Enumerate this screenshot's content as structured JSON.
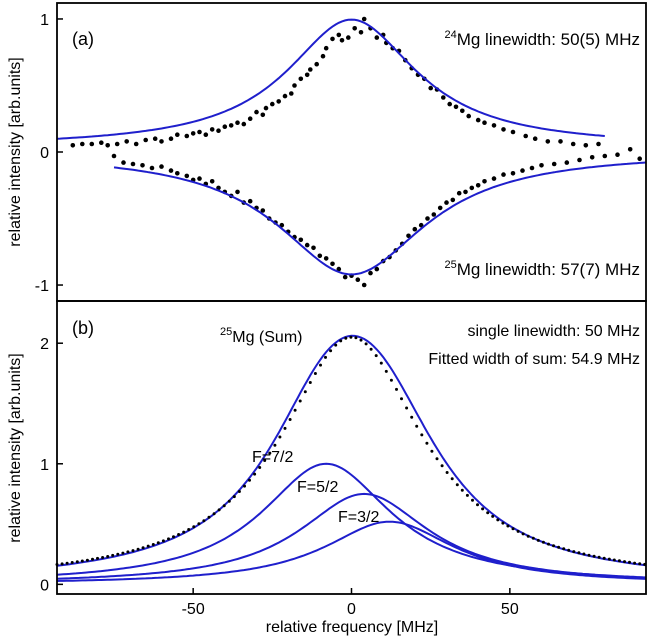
{
  "chart_data": [
    {
      "type": "scatter",
      "panel_label": "(a)",
      "ylabel": "relative intensity [arb.units]",
      "xlim": [
        -93,
        93
      ],
      "ylim": [
        -1.12,
        1.12
      ],
      "yticks": [
        {
          "value": -1,
          "label": "-1"
        },
        {
          "value": 0,
          "label": "0"
        },
        {
          "value": 1,
          "label": "1"
        }
      ],
      "annotations": [
        {
          "sup": "24",
          "text": "Mg linewidth: 50(5) MHz"
        },
        {
          "sup": "25",
          "text": "Mg linewidth: 57(7) MHz"
        }
      ],
      "series": [
        {
          "fit": {
            "center": 0,
            "fwhm": 50,
            "amplitude": 0.96,
            "offset": 0.035,
            "range": [
              -93,
              80
            ]
          },
          "points": [
            [
              -88,
              0.05
            ],
            [
              -85,
              0.06
            ],
            [
              -82,
              0.06
            ],
            [
              -79,
              0.07
            ],
            [
              -77,
              0.05
            ],
            [
              -74,
              0.06
            ],
            [
              -71,
              0.08
            ],
            [
              -68,
              0.06
            ],
            [
              -65,
              0.09
            ],
            [
              -62,
              0.1
            ],
            [
              -60,
              0.08
            ],
            [
              -57,
              0.1
            ],
            [
              -55,
              0.13
            ],
            [
              -52,
              0.12
            ],
            [
              -50,
              0.14
            ],
            [
              -48,
              0.15
            ],
            [
              -46,
              0.13
            ],
            [
              -44,
              0.17
            ],
            [
              -42,
              0.16
            ],
            [
              -40,
              0.19
            ],
            [
              -38,
              0.2
            ],
            [
              -36,
              0.22
            ],
            [
              -34,
              0.21
            ],
            [
              -32,
              0.25
            ],
            [
              -30,
              0.3
            ],
            [
              -28,
              0.28
            ],
            [
              -27,
              0.33
            ],
            [
              -25,
              0.36
            ],
            [
              -23,
              0.38
            ],
            [
              -21,
              0.42
            ],
            [
              -19,
              0.44
            ],
            [
              -18,
              0.5
            ],
            [
              -16,
              0.55
            ],
            [
              -14,
              0.58
            ],
            [
              -13,
              0.62
            ],
            [
              -11,
              0.66
            ],
            [
              -9,
              0.72
            ],
            [
              -8,
              0.78
            ],
            [
              -6,
              0.85
            ],
            [
              -4,
              0.88
            ],
            [
              -3,
              0.84
            ],
            [
              -1,
              0.86
            ],
            [
              1,
              0.93
            ],
            [
              3,
              0.9
            ],
            [
              4,
              1.0
            ],
            [
              6,
              0.93
            ],
            [
              8,
              0.86
            ],
            [
              10,
              0.88
            ],
            [
              11,
              0.82
            ],
            [
              13,
              0.78
            ],
            [
              15,
              0.76
            ],
            [
              17,
              0.69
            ],
            [
              19,
              0.63
            ],
            [
              21,
              0.58
            ],
            [
              23,
              0.55
            ],
            [
              25,
              0.48
            ],
            [
              27,
              0.47
            ],
            [
              29,
              0.41
            ],
            [
              31,
              0.36
            ],
            [
              33,
              0.34
            ],
            [
              35,
              0.31
            ],
            [
              37,
              0.27
            ],
            [
              40,
              0.24
            ],
            [
              42,
              0.22
            ],
            [
              45,
              0.2
            ],
            [
              48,
              0.17
            ],
            [
              51,
              0.15
            ],
            [
              55,
              0.12
            ],
            [
              58,
              0.1
            ],
            [
              62,
              0.08
            ],
            [
              66,
              0.08
            ],
            [
              70,
              0.06
            ],
            [
              74,
              0.05
            ],
            [
              78,
              0.06
            ]
          ]
        },
        {
          "fit": {
            "center": 0,
            "fwhm": 57,
            "amplitude": -0.92,
            "offset": 0.0,
            "range": [
              -75,
              93
            ]
          },
          "points": [
            [
              -75,
              -0.03
            ],
            [
              -72,
              -0.08
            ],
            [
              -69,
              -0.09
            ],
            [
              -66,
              -0.1
            ],
            [
              -63,
              -0.12
            ],
            [
              -60,
              -0.11
            ],
            [
              -57,
              -0.14
            ],
            [
              -55,
              -0.16
            ],
            [
              -52,
              -0.18
            ],
            [
              -50,
              -0.21
            ],
            [
              -48,
              -0.2
            ],
            [
              -46,
              -0.24
            ],
            [
              -44,
              -0.22
            ],
            [
              -42,
              -0.27
            ],
            [
              -40,
              -0.3
            ],
            [
              -38,
              -0.33
            ],
            [
              -36,
              -0.3
            ],
            [
              -34,
              -0.38
            ],
            [
              -32,
              -0.37
            ],
            [
              -30,
              -0.42
            ],
            [
              -28,
              -0.44
            ],
            [
              -26,
              -0.5
            ],
            [
              -24,
              -0.53
            ],
            [
              -22,
              -0.55
            ],
            [
              -20,
              -0.6
            ],
            [
              -18,
              -0.64
            ],
            [
              -16,
              -0.66
            ],
            [
              -14,
              -0.7
            ],
            [
              -12,
              -0.72
            ],
            [
              -10,
              -0.78
            ],
            [
              -8,
              -0.8
            ],
            [
              -6,
              -0.84
            ],
            [
              -4,
              -0.88
            ],
            [
              -2,
              -0.94
            ],
            [
              0,
              -0.93
            ],
            [
              2,
              -0.96
            ],
            [
              4,
              -1.0
            ],
            [
              6,
              -0.91
            ],
            [
              8,
              -0.88
            ],
            [
              10,
              -0.82
            ],
            [
              12,
              -0.79
            ],
            [
              14,
              -0.74
            ],
            [
              16,
              -0.69
            ],
            [
              18,
              -0.63
            ],
            [
              20,
              -0.58
            ],
            [
              22,
              -0.55
            ],
            [
              24,
              -0.5
            ],
            [
              26,
              -0.47
            ],
            [
              28,
              -0.42
            ],
            [
              30,
              -0.38
            ],
            [
              32,
              -0.36
            ],
            [
              34,
              -0.31
            ],
            [
              36,
              -0.3
            ],
            [
              38,
              -0.27
            ],
            [
              40,
              -0.25
            ],
            [
              42,
              -0.22
            ],
            [
              45,
              -0.2
            ],
            [
              48,
              -0.17
            ],
            [
              51,
              -0.16
            ],
            [
              54,
              -0.14
            ],
            [
              57,
              -0.12
            ],
            [
              60,
              -0.1
            ],
            [
              64,
              -0.09
            ],
            [
              68,
              -0.08
            ],
            [
              72,
              -0.06
            ],
            [
              76,
              -0.04
            ],
            [
              80,
              -0.03
            ],
            [
              84,
              -0.02
            ],
            [
              88,
              0.02
            ],
            [
              91,
              -0.05
            ]
          ]
        }
      ]
    },
    {
      "type": "line",
      "panel_label": "(b)",
      "xlabel": "relative frequency [MHz]",
      "ylabel": "relative intensity [arb.units]",
      "xlim": [
        -93,
        93
      ],
      "ylim": [
        -0.08,
        2.35
      ],
      "xticks": [
        {
          "value": -50,
          "label": "-50"
        },
        {
          "value": 0,
          "label": "0"
        },
        {
          "value": 50,
          "label": "50"
        }
      ],
      "yticks": [
        {
          "value": 0,
          "label": "0"
        },
        {
          "value": 1,
          "label": "1"
        },
        {
          "value": 2,
          "label": "2"
        }
      ],
      "annotations": [
        {
          "sup": "25",
          "text": "Mg (Sum)"
        },
        {
          "sup": "",
          "text": "single linewidth: 50 MHz"
        },
        {
          "sup": "",
          "text": "Fitted width of sum: 54.9 MHz"
        }
      ],
      "series": [
        {
          "label": "F=7/2",
          "center": -8,
          "amplitude": 1.0,
          "fwhm": 50
        },
        {
          "label": "F=5/2",
          "center": 4,
          "amplitude": 0.75,
          "fwhm": 50
        },
        {
          "label": "F=3/2",
          "center": 12,
          "amplitude": 0.52,
          "fwhm": 50
        }
      ],
      "sum_fit": {
        "center": 0,
        "amplitude": 2.05,
        "fwhm": 54.9
      }
    }
  ]
}
